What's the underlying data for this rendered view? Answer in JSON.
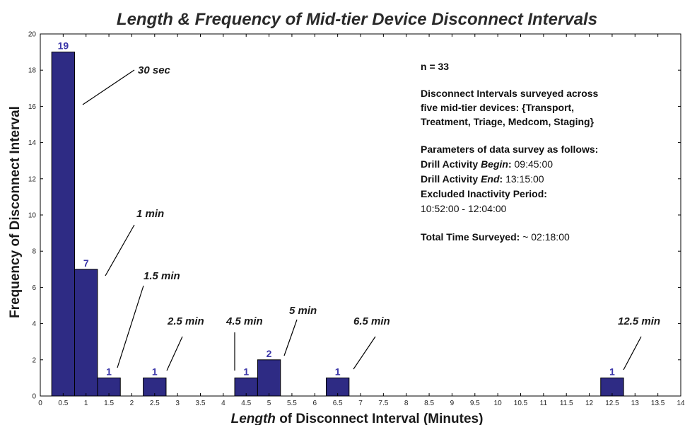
{
  "chart_data": {
    "type": "bar",
    "title": "Length & Frequency of Mid-tier Device Disconnect Intervals",
    "xlabel_italic": "Length",
    "xlabel_rest": " of Disconnect Interval (Minutes)",
    "ylabel": "Frequency of Disconnect Interval",
    "xlim": [
      0,
      14
    ],
    "ylim": [
      0,
      20
    ],
    "x_ticks": [
      "0",
      "0.5",
      "1",
      "1.5",
      "2",
      "2.5",
      "3",
      "3.5",
      "4",
      "4.5",
      "5",
      "5.5",
      "6",
      "6.5",
      "7",
      "7.5",
      "8",
      "8.5",
      "9",
      "9.5",
      "10",
      "10.5",
      "11",
      "11.5",
      "12",
      "12.5",
      "13",
      "13.5",
      "14"
    ],
    "y_ticks": [
      "0",
      "2",
      "4",
      "6",
      "8",
      "10",
      "12",
      "14",
      "16",
      "18",
      "20"
    ],
    "bar_width": 0.5,
    "bar_color": "#2e2b84",
    "bars": [
      {
        "x": 0.5,
        "value": 19,
        "label": "19"
      },
      {
        "x": 1.0,
        "value": 7,
        "label": "7"
      },
      {
        "x": 1.5,
        "value": 1,
        "label": "1"
      },
      {
        "x": 2.5,
        "value": 1,
        "label": "1"
      },
      {
        "x": 4.5,
        "value": 1,
        "label": "1"
      },
      {
        "x": 5.0,
        "value": 2,
        "label": "2"
      },
      {
        "x": 6.5,
        "value": 1,
        "label": "1"
      },
      {
        "x": 12.5,
        "value": 1,
        "label": "1"
      }
    ],
    "annotations": [
      {
        "text": "30 sec",
        "x": 0.5
      },
      {
        "text": "1 min",
        "x": 1.0
      },
      {
        "text": "1.5 min",
        "x": 1.5
      },
      {
        "text": "2.5 min",
        "x": 2.5
      },
      {
        "text": "4.5 min",
        "x": 4.5
      },
      {
        "text": "5 min",
        "x": 5.0
      },
      {
        "text": "6.5 min",
        "x": 6.5
      },
      {
        "text": "12.5 min",
        "x": 12.5
      }
    ],
    "info": {
      "n": "n = 33",
      "surveyed_1": "Disconnect Intervals surveyed across",
      "surveyed_2": "five mid-tier devices: {Transport,",
      "surveyed_3": "Treatment, Triage, Medcom, Staging}",
      "params": "Parameters of data survey as follows:",
      "begin_a": "Drill Activity ",
      "begin_b": "Begin",
      "begin_c": ":  ",
      "begin_v": "09:45:00",
      "end_a": "Drill Activity ",
      "end_b": "End",
      "end_c": ":  ",
      "end_v": "13:15:00",
      "excluded": "Excluded Inactivity Period:",
      "excluded_v": "10:52:00 - 12:04:00",
      "total_a": "Total Time Surveyed:",
      "total_v": " ~ 02:18:00"
    }
  }
}
